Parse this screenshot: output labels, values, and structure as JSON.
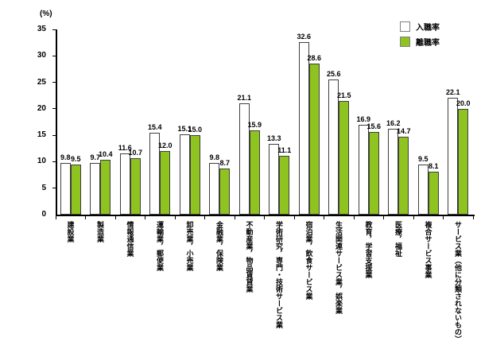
{
  "chart_data": {
    "type": "bar",
    "title": "",
    "xlabel": "",
    "ylabel": "(%)",
    "ylim": [
      0,
      35
    ],
    "yticks": [
      0,
      5,
      10,
      15,
      20,
      25,
      30,
      35
    ],
    "grid": false,
    "legend_position": "top-right",
    "categories": [
      "建設業",
      "製造業",
      "情報通信業",
      "運輸業，郵便業",
      "卸売業，小売業",
      "金融業，保険業",
      "不動産業，物品賃貸業",
      "学術研究，専門・技術サービス業",
      "宿泊業，飲食サービス業",
      "生活関連サービス業，娯楽業",
      "教育，学習支援業",
      "医療，福祉",
      "複合サービス事業",
      "サービス業（他に分類されないもの）"
    ],
    "series": [
      {
        "name": "入職率",
        "color": "#ffffff",
        "values": [
          9.8,
          9.7,
          11.6,
          15.4,
          15.1,
          9.8,
          21.1,
          13.3,
          32.6,
          25.6,
          16.9,
          16.2,
          9.5,
          22.1
        ]
      },
      {
        "name": "離職率",
        "color": "#8fc31f",
        "values": [
          9.5,
          10.4,
          10.7,
          12.0,
          15.0,
          8.7,
          15.9,
          11.1,
          28.6,
          21.5,
          15.6,
          14.7,
          8.1,
          20.0
        ]
      }
    ]
  }
}
